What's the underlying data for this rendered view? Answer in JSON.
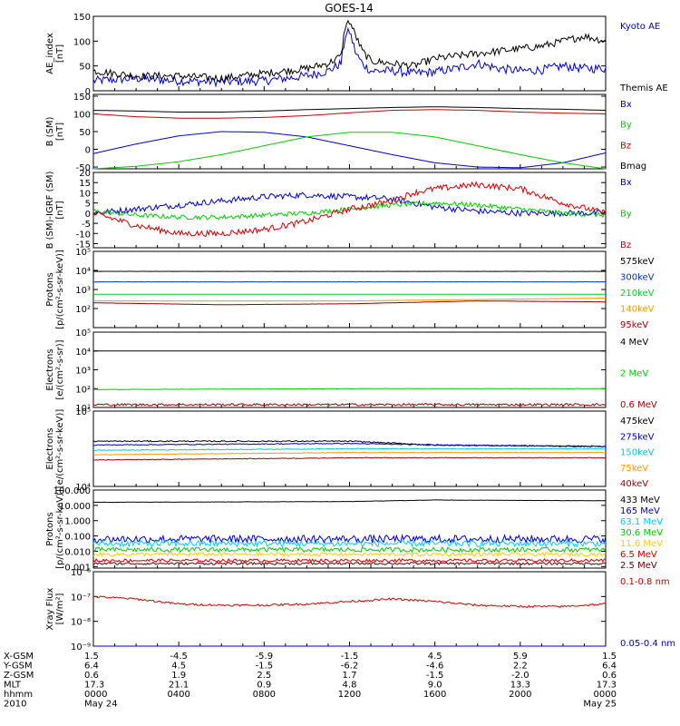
{
  "title": "GOES-14",
  "chart_data": [
    {
      "type": "line",
      "ylabel": "AE_index\n[nT]",
      "scale": "linear",
      "ylim": [
        0,
        150
      ],
      "ticks": [
        {
          "v": 0,
          "label": "0"
        },
        {
          "v": 50,
          "label": "50"
        },
        {
          "v": 100,
          "label": "100"
        },
        {
          "v": 150,
          "label": "150"
        }
      ],
      "series": [
        {
          "name": "Kyoto AE",
          "color": "#0000cc",
          "noise": 0.06,
          "x": [
            0,
            2,
            4,
            6,
            8,
            10,
            11,
            11.6,
            11.8,
            12,
            12.3,
            12.6,
            13,
            14,
            15,
            16,
            17,
            18,
            19,
            20,
            21,
            22,
            23,
            24
          ],
          "y": [
            20,
            25,
            20,
            18,
            20,
            30,
            40,
            55,
            110,
            120,
            75,
            55,
            40,
            40,
            35,
            38,
            45,
            55,
            45,
            40,
            42,
            50,
            45,
            45
          ]
        },
        {
          "name": "Themis AE",
          "color": "#000000",
          "noise": 0.05,
          "x": [
            0,
            2,
            4,
            6,
            8,
            10,
            11,
            11.6,
            11.8,
            12,
            12.3,
            12.6,
            13,
            14,
            15,
            16,
            17,
            18,
            19,
            20,
            21,
            22,
            23,
            24
          ],
          "y": [
            40,
            30,
            30,
            25,
            35,
            45,
            55,
            70,
            130,
            140,
            110,
            80,
            60,
            55,
            50,
            65,
            70,
            75,
            80,
            85,
            90,
            100,
            110,
            100
          ]
        }
      ]
    },
    {
      "type": "line",
      "ylabel": "B (SM)\n[nT]",
      "scale": "linear",
      "ylim": [
        -55,
        155
      ],
      "ticks": [
        {
          "v": -50,
          "label": "-50"
        },
        {
          "v": 0,
          "label": "0"
        },
        {
          "v": 50,
          "label": "50"
        },
        {
          "v": 100,
          "label": "100"
        },
        {
          "v": 150,
          "label": "150"
        }
      ],
      "series": [
        {
          "name": "Bx",
          "color": "#0000cc",
          "noise": 0,
          "x": [
            0,
            2,
            4,
            6,
            8,
            10,
            12,
            14,
            16,
            18,
            20,
            22,
            24
          ],
          "y": [
            -12,
            15,
            38,
            50,
            48,
            35,
            10,
            -15,
            -38,
            -50,
            -52,
            -38,
            -10
          ]
        },
        {
          "name": "By",
          "color": "#00cc00",
          "noise": 0,
          "x": [
            0,
            2,
            4,
            6,
            8,
            10,
            12,
            14,
            16,
            18,
            20,
            22,
            24
          ],
          "y": [
            -55,
            -48,
            -35,
            -15,
            10,
            35,
            48,
            48,
            35,
            10,
            -15,
            -38,
            -55
          ]
        },
        {
          "name": "Bz",
          "color": "#cc0000",
          "noise": 0,
          "x": [
            0,
            2,
            4,
            6,
            8,
            10,
            12,
            14,
            16,
            18,
            20,
            22,
            24
          ],
          "y": [
            100,
            92,
            88,
            88,
            90,
            95,
            103,
            110,
            112,
            110,
            105,
            102,
            100
          ]
        },
        {
          "name": "Bmag",
          "color": "#000000",
          "noise": 0,
          "x": [
            0,
            2,
            4,
            6,
            8,
            10,
            12,
            14,
            16,
            18,
            20,
            22,
            24
          ],
          "y": [
            110,
            108,
            105,
            105,
            108,
            112,
            115,
            118,
            120,
            118,
            115,
            113,
            110
          ]
        }
      ]
    },
    {
      "type": "line",
      "ylabel": "B (SM)-IGRF (SM)\n[nT]",
      "scale": "linear",
      "ylim": [
        -17,
        20
      ],
      "ticks": [
        {
          "v": -15,
          "label": "-15"
        },
        {
          "v": -10,
          "label": "-10"
        },
        {
          "v": -5,
          "label": "-5"
        },
        {
          "v": 0,
          "label": "0"
        },
        {
          "v": 5,
          "label": "5"
        },
        {
          "v": 10,
          "label": "10"
        },
        {
          "v": 15,
          "label": "15"
        },
        {
          "v": 20,
          "label": "20"
        }
      ],
      "series": [
        {
          "name": "Bx",
          "color": "#0000cc",
          "noise": 0.04,
          "x": [
            0,
            2,
            4,
            6,
            8,
            10,
            12,
            14,
            16,
            18,
            20,
            22,
            24
          ],
          "y": [
            0,
            2,
            4,
            6,
            8,
            9,
            8,
            7,
            3,
            1,
            0,
            0,
            0
          ]
        },
        {
          "name": "By",
          "color": "#00cc00",
          "noise": 0.03,
          "x": [
            0,
            2,
            4,
            6,
            8,
            10,
            12,
            14,
            16,
            18,
            20,
            22,
            24
          ],
          "y": [
            1,
            -1,
            -2,
            -2,
            -1,
            0,
            2,
            4,
            5,
            4,
            2,
            0,
            -1
          ]
        },
        {
          "name": "Bz",
          "color": "#cc0000",
          "noise": 0.04,
          "x": [
            0,
            2,
            4,
            6,
            8,
            10,
            12,
            14,
            15,
            16,
            18,
            20,
            22,
            24
          ],
          "y": [
            0,
            -6,
            -10,
            -10,
            -8,
            -4,
            2,
            6,
            10,
            12,
            14,
            12,
            5,
            0
          ]
        }
      ]
    },
    {
      "type": "line",
      "ylabel": "Protons\n[p/(cm²-s-sr-keV)]",
      "scale": "log",
      "ylim": [
        1,
        5
      ],
      "ticks": [
        {
          "v": 2,
          "label": "10²"
        },
        {
          "v": 3,
          "label": "10³"
        },
        {
          "v": 4,
          "label": "10⁴"
        },
        {
          "v": 5,
          "label": "10⁵"
        }
      ],
      "series": [
        {
          "name": "575keV",
          "color": "#000000",
          "noise": 0.004,
          "x": [
            0,
            24
          ],
          "y": [
            3.95,
            3.95
          ]
        },
        {
          "name": "300keV",
          "color": "#0033cc",
          "noise": 0.004,
          "x": [
            0,
            24
          ],
          "y": [
            3.4,
            3.4
          ]
        },
        {
          "name": "210keV",
          "color": "#00cc33",
          "noise": 0.004,
          "x": [
            0,
            24
          ],
          "y": [
            2.75,
            2.75
          ]
        },
        {
          "name": "140keV",
          "color": "#ff9900",
          "noise": 0.004,
          "x": [
            0,
            12,
            24
          ],
          "y": [
            2.4,
            2.4,
            2.55
          ]
        },
        {
          "name": "95keV",
          "color": "#990000",
          "noise": 0.004,
          "x": [
            0,
            6,
            12,
            18,
            24
          ],
          "y": [
            2.3,
            2.2,
            2.25,
            2.4,
            2.35
          ]
        }
      ]
    },
    {
      "type": "line",
      "ylabel": "Electrons\n[e/(cm²-s-sr)]",
      "scale": "log",
      "ylim": [
        1,
        5
      ],
      "ticks": [
        {
          "v": 1,
          "label": "10¹"
        },
        {
          "v": 2,
          "label": "10²"
        },
        {
          "v": 3,
          "label": "10³"
        },
        {
          "v": 4,
          "label": "10⁴"
        },
        {
          "v": 5,
          "label": "10⁵"
        }
      ],
      "series": [
        {
          "name": "4 MeV",
          "color": "#000000",
          "noise": 0.003,
          "x": [
            0,
            24
          ],
          "y": [
            4.0,
            4.0
          ]
        },
        {
          "name": "2 MeV",
          "color": "#00cc00",
          "noise": 0.01,
          "x": [
            0,
            12,
            24
          ],
          "y": [
            1.95,
            2.0,
            2.0
          ]
        },
        {
          "name": "0.6 MeV",
          "color": "#990000",
          "noise": 0.06,
          "x": [
            0,
            24
          ],
          "y": [
            1.15,
            1.15
          ]
        }
      ]
    },
    {
      "type": "line",
      "ylabel": "Electrons\n[e/(cm²-s-sr-keV)]",
      "scale": "log",
      "ylim": [
        4,
        5
      ],
      "ticks": [
        {
          "v": 4,
          "label": "10⁴"
        },
        {
          "v": 5,
          "label": "10⁵"
        }
      ],
      "series": [
        {
          "name": "475keV",
          "color": "#000000",
          "noise": 0.008,
          "x": [
            0,
            12,
            16,
            24
          ],
          "y": [
            4.6,
            4.6,
            4.55,
            4.53
          ]
        },
        {
          "name": "275keV",
          "color": "#0000cc",
          "noise": 0.006,
          "x": [
            0,
            12,
            16,
            24
          ],
          "y": [
            4.55,
            4.57,
            4.55,
            4.53
          ]
        },
        {
          "name": "150keV",
          "color": "#00cccc",
          "noise": 0.005,
          "x": [
            0,
            12,
            24
          ],
          "y": [
            4.48,
            4.5,
            4.5
          ]
        },
        {
          "name": "75keV",
          "color": "#ff9900",
          "noise": 0.004,
          "x": [
            0,
            12,
            24
          ],
          "y": [
            4.42,
            4.45,
            4.45
          ]
        },
        {
          "name": "40keV",
          "color": "#990000",
          "noise": 0.004,
          "x": [
            0,
            12,
            24
          ],
          "y": [
            4.35,
            4.38,
            4.38
          ]
        }
      ]
    },
    {
      "type": "line",
      "ylabel": "Protons\n[p/(cm²-s-sr-keV)]",
      "scale": "log",
      "ylim": [
        -3.1,
        2
      ],
      "ticks": [
        {
          "v": -3,
          "label": "0.001"
        },
        {
          "v": -2,
          "label": "0.010"
        },
        {
          "v": -1,
          "label": "0.100"
        },
        {
          "v": 0,
          "label": "1.000"
        },
        {
          "v": 1,
          "label": "10.000"
        },
        {
          "v": 2,
          "label": "100.000"
        }
      ],
      "series": [
        {
          "name": "433 MeV",
          "color": "#000000",
          "noise": 0.01,
          "x": [
            0,
            12,
            16,
            24
          ],
          "y": [
            1.2,
            1.25,
            1.35,
            1.3
          ]
        },
        {
          "name": "165 MeV",
          "color": "#0000cc",
          "noise": 0.25,
          "x": [
            0,
            24
          ],
          "y": [
            -1.2,
            -1.2
          ]
        },
        {
          "name": "63.1 MeV",
          "color": "#00ccff",
          "noise": 0.2,
          "x": [
            0,
            24
          ],
          "y": [
            -1.5,
            -1.5
          ]
        },
        {
          "name": "30.6 MeV",
          "color": "#00cc00",
          "noise": 0.15,
          "x": [
            0,
            24
          ],
          "y": [
            -1.9,
            -1.9
          ]
        },
        {
          "name": "11.6 MeV",
          "color": "#ffcc00",
          "noise": 0.12,
          "x": [
            0,
            24
          ],
          "y": [
            -2.2,
            -2.2
          ]
        },
        {
          "name": "6.5 MeV",
          "color": "#cc0000",
          "noise": 0.1,
          "x": [
            0,
            24
          ],
          "y": [
            -2.6,
            -2.6
          ]
        },
        {
          "name": "2.5 MeV",
          "color": "#660000",
          "noise": 0.08,
          "x": [
            0,
            24
          ],
          "y": [
            -2.8,
            -2.8
          ]
        }
      ]
    },
    {
      "type": "line",
      "ylabel": "Xray Flux\n[W/m²]",
      "scale": "log",
      "ylim": [
        -9,
        -6
      ],
      "ticks": [
        {
          "v": -9,
          "label": "10⁻⁹"
        },
        {
          "v": -8,
          "label": "10⁻⁸"
        },
        {
          "v": -7,
          "label": "10⁻⁷"
        },
        {
          "v": -6,
          "label": "10⁻⁶"
        }
      ],
      "series": [
        {
          "name": "0.1-0.8 nm",
          "color": "#cc0000",
          "noise": 0.04,
          "x": [
            0,
            2,
            4,
            6,
            8,
            10,
            12,
            14,
            16,
            18,
            20,
            22,
            24
          ],
          "y": [
            -7.0,
            -7.1,
            -7.3,
            -7.35,
            -7.35,
            -7.3,
            -7.2,
            -7.1,
            -7.2,
            -7.35,
            -7.4,
            -7.4,
            -7.3
          ]
        },
        {
          "name": "0.05-0.4 nm",
          "color": "#0000cc",
          "noise": 0,
          "x": [
            0,
            24
          ],
          "y": [
            -9.0,
            -9.0
          ]
        }
      ]
    }
  ],
  "xticks": [
    {
      "x": 0,
      "rows": [
        "1.5",
        "6.4",
        "0.6",
        "17.3",
        "0000",
        "May 24"
      ]
    },
    {
      "x": 4,
      "rows": [
        "-4.5",
        "4.5",
        "1.9",
        "21.1",
        "0400",
        ""
      ]
    },
    {
      "x": 8,
      "rows": [
        "-5.9",
        "-1.5",
        "2.5",
        "0.9",
        "0800",
        ""
      ]
    },
    {
      "x": 12,
      "rows": [
        "-1.5",
        "-6.2",
        "1.7",
        "4.8",
        "1200",
        ""
      ]
    },
    {
      "x": 16,
      "rows": [
        "4.5",
        "-4.6",
        "-1.5",
        "9.0",
        "1600",
        ""
      ]
    },
    {
      "x": 20,
      "rows": [
        "5.9",
        "2.2",
        "-2.0",
        "13.3",
        "2000",
        ""
      ]
    },
    {
      "x": 24,
      "rows": [
        "1.5",
        "6.4",
        "0.6",
        "17.3",
        "0000",
        "May 25"
      ]
    }
  ],
  "row_labels": [
    "X-GSM",
    "Y-GSM",
    "Z-GSM",
    "MLT",
    "hhmm",
    "2010"
  ]
}
